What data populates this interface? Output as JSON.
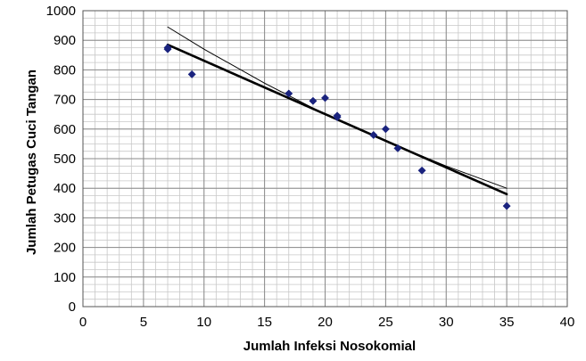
{
  "chart_data": {
    "type": "scatter",
    "title": "",
    "xlabel": "Jumlah Infeksi Nosokomial",
    "ylabel": "Jumlah Petugas Cuci Tangan",
    "xlim": [
      0,
      40
    ],
    "ylim": [
      0,
      1000
    ],
    "x_ticks": [
      0,
      5,
      10,
      15,
      20,
      25,
      30,
      35,
      40
    ],
    "y_ticks": [
      0,
      100,
      200,
      300,
      400,
      500,
      600,
      700,
      800,
      900,
      1000
    ],
    "grid": true,
    "x_minor_step": 1,
    "y_minor_step": 25,
    "marker_color": "#1a237e",
    "points": [
      {
        "x": 7,
        "y": 870
      },
      {
        "x": 7,
        "y": 875
      },
      {
        "x": 9,
        "y": 785
      },
      {
        "x": 17,
        "y": 720
      },
      {
        "x": 19,
        "y": 695
      },
      {
        "x": 20,
        "y": 705
      },
      {
        "x": 21,
        "y": 640
      },
      {
        "x": 21,
        "y": 645
      },
      {
        "x": 24,
        "y": 580
      },
      {
        "x": 25,
        "y": 600
      },
      {
        "x": 26,
        "y": 535
      },
      {
        "x": 28,
        "y": 460
      },
      {
        "x": 35,
        "y": 340
      }
    ],
    "trend_lines": [
      {
        "kind": "linear",
        "x": [
          7,
          35
        ],
        "y": [
          885,
          380
        ],
        "stroke_width": 2.6
      },
      {
        "kind": "curve",
        "x": [
          7,
          10,
          15,
          20,
          25,
          30,
          35
        ],
        "y": [
          945,
          870,
          755,
          650,
          560,
          475,
          400
        ],
        "stroke_width": 1
      }
    ]
  }
}
